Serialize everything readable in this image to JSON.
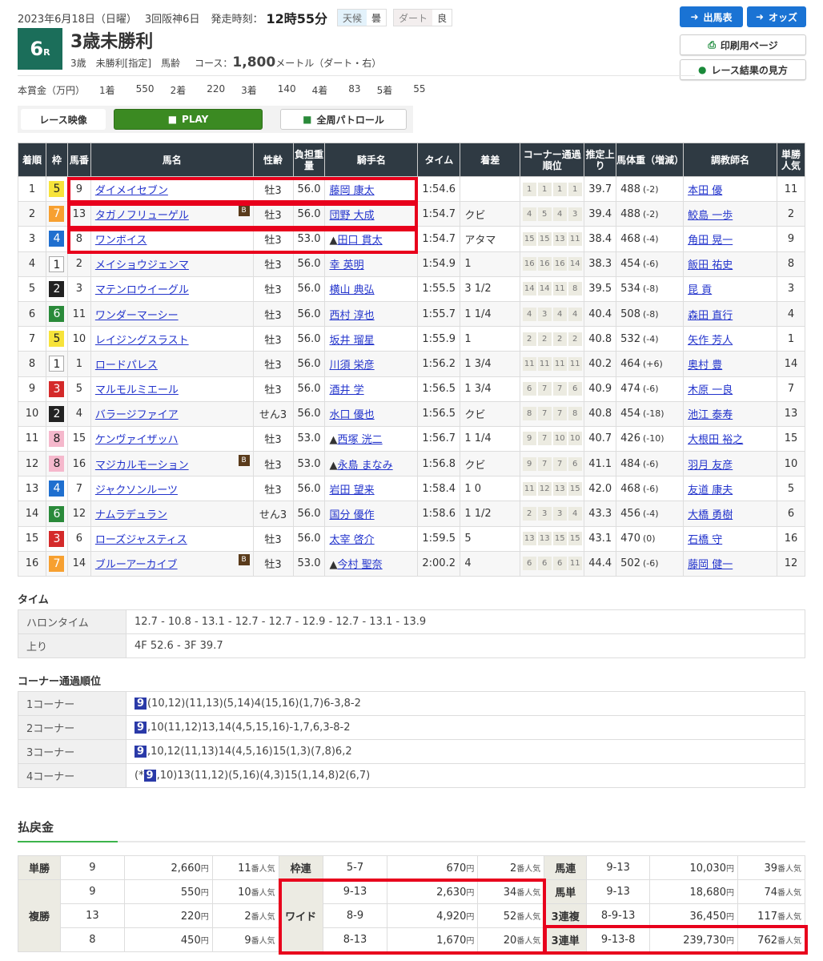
{
  "header": {
    "date": "2023年6月18日（日曜）",
    "meeting": "3回阪神6日",
    "post_label": "発走時刻：",
    "post_time": "12時55分",
    "weather_label": "天候",
    "weather": "曇",
    "track_label": "ダート",
    "track_cond": "良",
    "race_no": "6",
    "race_no_suffix": "R",
    "race_name": "3歳未勝利",
    "conditions": "3歳　未勝利[指定]　馬齢",
    "course_label": "コース：",
    "distance": "1,800",
    "distance_unit": "メートル（ダート・右）"
  },
  "prize": {
    "label": "本賞金（万円）",
    "items": [
      {
        "place": "1着",
        "value": "550"
      },
      {
        "place": "2着",
        "value": "220"
      },
      {
        "place": "3着",
        "value": "140"
      },
      {
        "place": "4着",
        "value": "83"
      },
      {
        "place": "5着",
        "value": "55"
      }
    ]
  },
  "video": {
    "label": "レース映像",
    "play": "PLAY",
    "patrol": "全周パトロール"
  },
  "nav": {
    "entries": "出馬表",
    "odds": "オッズ",
    "print": "印刷用ページ",
    "guide": "レース結果の見方"
  },
  "colors": {
    "waku": {
      "1": "#ffffff",
      "2": "#222222",
      "3": "#d42a2a",
      "4": "#1f6fcf",
      "5": "#f7e33a",
      "6": "#2a8a3a",
      "7": "#f7a030",
      "8": "#f5b8cc"
    },
    "accent": "#1b6e5a",
    "highlight": "#e8001c"
  },
  "results": {
    "headers": [
      "着順",
      "枠",
      "馬番",
      "馬名",
      "性齢",
      "負担重量",
      "騎手名",
      "タイム",
      "着差",
      "コーナー通過順位",
      "推定上り",
      "馬体重（増減）",
      "調教師名",
      "単勝人気"
    ],
    "rows": [
      {
        "pos": "1",
        "waku": "5",
        "num": "9",
        "horse": "ダイメイセブン",
        "blinker": false,
        "sex": "牡3",
        "wt": "56.0",
        "jmark": "",
        "jockey": "藤岡 康太",
        "time": "1:54.6",
        "margin": "",
        "corners": [
          "1",
          "1",
          "1",
          "1"
        ],
        "last": "39.7",
        "bw": "488",
        "bwd": "(-2)",
        "trainer": "本田 優",
        "pop": "11"
      },
      {
        "pos": "2",
        "waku": "7",
        "num": "13",
        "horse": "タガノフリューゲル",
        "blinker": true,
        "sex": "牡3",
        "wt": "56.0",
        "jmark": "",
        "jockey": "団野 大成",
        "time": "1:54.7",
        "margin": "クビ",
        "corners": [
          "4",
          "5",
          "4",
          "3"
        ],
        "last": "39.4",
        "bw": "488",
        "bwd": "(-2)",
        "trainer": "鮫島 一歩",
        "pop": "2"
      },
      {
        "pos": "3",
        "waku": "4",
        "num": "8",
        "horse": "ワンボイス",
        "blinker": false,
        "sex": "牡3",
        "wt": "53.0",
        "jmark": "▲",
        "jockey": "田口 貫太",
        "time": "1:54.7",
        "margin": "アタマ",
        "corners": [
          "15",
          "15",
          "13",
          "11"
        ],
        "last": "38.4",
        "bw": "468",
        "bwd": "(-4)",
        "trainer": "角田 晃一",
        "pop": "9"
      },
      {
        "pos": "4",
        "waku": "1",
        "num": "2",
        "horse": "メイショウジェンマ",
        "blinker": false,
        "sex": "牡3",
        "wt": "56.0",
        "jmark": "",
        "jockey": "幸 英明",
        "time": "1:54.9",
        "margin": "1",
        "corners": [
          "16",
          "16",
          "16",
          "14"
        ],
        "last": "38.3",
        "bw": "454",
        "bwd": "(-6)",
        "trainer": "飯田 祐史",
        "pop": "8"
      },
      {
        "pos": "5",
        "waku": "2",
        "num": "3",
        "horse": "マテンロウイーグル",
        "blinker": false,
        "sex": "牡3",
        "wt": "56.0",
        "jmark": "",
        "jockey": "横山 典弘",
        "time": "1:55.5",
        "margin": "3 1/2",
        "corners": [
          "14",
          "14",
          "11",
          "8"
        ],
        "last": "39.5",
        "bw": "534",
        "bwd": "(-8)",
        "trainer": "昆 貢",
        "pop": "3"
      },
      {
        "pos": "6",
        "waku": "6",
        "num": "11",
        "horse": "ワンダーマーシー",
        "blinker": false,
        "sex": "牡3",
        "wt": "56.0",
        "jmark": "",
        "jockey": "西村 淳也",
        "time": "1:55.7",
        "margin": "1 1/4",
        "corners": [
          "4",
          "3",
          "4",
          "4"
        ],
        "last": "40.4",
        "bw": "508",
        "bwd": "(-8)",
        "trainer": "森田 直行",
        "pop": "4"
      },
      {
        "pos": "7",
        "waku": "5",
        "num": "10",
        "horse": "レイジングスラスト",
        "blinker": false,
        "sex": "牡3",
        "wt": "56.0",
        "jmark": "",
        "jockey": "坂井 瑠星",
        "time": "1:55.9",
        "margin": "1",
        "corners": [
          "2",
          "2",
          "2",
          "2"
        ],
        "last": "40.8",
        "bw": "532",
        "bwd": "(-4)",
        "trainer": "矢作 芳人",
        "pop": "1"
      },
      {
        "pos": "8",
        "waku": "1",
        "num": "1",
        "horse": "ロードパレス",
        "blinker": false,
        "sex": "牡3",
        "wt": "56.0",
        "jmark": "",
        "jockey": "川須 栄彦",
        "time": "1:56.2",
        "margin": "1 3/4",
        "corners": [
          "11",
          "11",
          "11",
          "11"
        ],
        "last": "40.2",
        "bw": "464",
        "bwd": "(+6)",
        "trainer": "奥村 豊",
        "pop": "14"
      },
      {
        "pos": "9",
        "waku": "3",
        "num": "5",
        "horse": "マルモルミエール",
        "blinker": false,
        "sex": "牡3",
        "wt": "56.0",
        "jmark": "",
        "jockey": "酒井 学",
        "time": "1:56.5",
        "margin": "1 3/4",
        "corners": [
          "6",
          "7",
          "7",
          "6"
        ],
        "last": "40.9",
        "bw": "474",
        "bwd": "(-6)",
        "trainer": "木原 一良",
        "pop": "7"
      },
      {
        "pos": "10",
        "waku": "2",
        "num": "4",
        "horse": "バラージファイア",
        "blinker": false,
        "sex": "せん3",
        "wt": "56.0",
        "jmark": "",
        "jockey": "水口 優也",
        "time": "1:56.5",
        "margin": "クビ",
        "corners": [
          "8",
          "7",
          "7",
          "8"
        ],
        "last": "40.8",
        "bw": "454",
        "bwd": "(-18)",
        "trainer": "池江 泰寿",
        "pop": "13"
      },
      {
        "pos": "11",
        "waku": "8",
        "num": "15",
        "horse": "ケンヴァイザッハ",
        "blinker": false,
        "sex": "牡3",
        "wt": "53.0",
        "jmark": "▲",
        "jockey": "西塚 洸二",
        "time": "1:56.7",
        "margin": "1 1/4",
        "corners": [
          "9",
          "7",
          "10",
          "10"
        ],
        "last": "40.7",
        "bw": "426",
        "bwd": "(-10)",
        "trainer": "大根田 裕之",
        "pop": "15"
      },
      {
        "pos": "12",
        "waku": "8",
        "num": "16",
        "horse": "マジカルモーション",
        "blinker": true,
        "sex": "牡3",
        "wt": "53.0",
        "jmark": "▲",
        "jockey": "永島 まなみ",
        "time": "1:56.8",
        "margin": "クビ",
        "corners": [
          "9",
          "7",
          "7",
          "6"
        ],
        "last": "41.1",
        "bw": "484",
        "bwd": "(-6)",
        "trainer": "羽月 友彦",
        "pop": "10"
      },
      {
        "pos": "13",
        "waku": "4",
        "num": "7",
        "horse": "ジャクソンルーツ",
        "blinker": false,
        "sex": "牡3",
        "wt": "56.0",
        "jmark": "",
        "jockey": "岩田 望来",
        "time": "1:58.4",
        "margin": "1 0",
        "corners": [
          "11",
          "12",
          "13",
          "15"
        ],
        "last": "42.0",
        "bw": "468",
        "bwd": "(-6)",
        "trainer": "友道 康夫",
        "pop": "5"
      },
      {
        "pos": "14",
        "waku": "6",
        "num": "12",
        "horse": "ナムラデュラン",
        "blinker": false,
        "sex": "せん3",
        "wt": "56.0",
        "jmark": "",
        "jockey": "国分 優作",
        "time": "1:58.6",
        "margin": "1 1/2",
        "corners": [
          "2",
          "3",
          "3",
          "4"
        ],
        "last": "43.3",
        "bw": "456",
        "bwd": "(-4)",
        "trainer": "大橋 勇樹",
        "pop": "6"
      },
      {
        "pos": "15",
        "waku": "3",
        "num": "6",
        "horse": "ローズジャスティス",
        "blinker": false,
        "sex": "牡3",
        "wt": "56.0",
        "jmark": "",
        "jockey": "太宰 啓介",
        "time": "1:59.5",
        "margin": "5",
        "corners": [
          "13",
          "13",
          "15",
          "15"
        ],
        "last": "43.1",
        "bw": "470",
        "bwd": "(0)",
        "trainer": "石橋 守",
        "pop": "16"
      },
      {
        "pos": "16",
        "waku": "7",
        "num": "14",
        "horse": "ブルーアーカイブ",
        "blinker": true,
        "sex": "牡3",
        "wt": "53.0",
        "jmark": "▲",
        "jockey": "今村 聖奈",
        "time": "2:00.2",
        "margin": "4",
        "corners": [
          "6",
          "6",
          "6",
          "11"
        ],
        "last": "44.4",
        "bw": "502",
        "bwd": "(-6)",
        "trainer": "藤岡 健一",
        "pop": "12"
      }
    ],
    "blinker_label": "B"
  },
  "time_section": {
    "title": "タイム",
    "rows": [
      {
        "k": "ハロンタイム",
        "v": "12.7 - 10.8 - 13.1 - 12.7 - 12.7 - 12.9 - 12.7 - 13.1 - 13.9"
      },
      {
        "k": "上り",
        "v": "4F 52.6 - 3F 39.7"
      }
    ]
  },
  "corner_section": {
    "title": "コーナー通過順位",
    "rows": [
      {
        "k": "1コーナー",
        "pre": "",
        "lead": "9",
        "v": "(10,12)(11,13)(5,14)4(15,16)(1,7)6-3,8-2"
      },
      {
        "k": "2コーナー",
        "pre": "",
        "lead": "9",
        "v": ",10(11,12)13,14(4,5,15,16)-1,7,6,3-8-2"
      },
      {
        "k": "3コーナー",
        "pre": "",
        "lead": "9",
        "v": ",10,12(11,13)14(4,5,16)15(1,3)(7,8)6,2"
      },
      {
        "k": "4コーナー",
        "pre": "(*",
        "lead": "9",
        "v": ",10)13(11,12)(5,16)(4,3)15(1,14,8)2(6,7)"
      }
    ]
  },
  "payout": {
    "title": "払戻金",
    "yen": "円",
    "pop_suffix": "番人気",
    "tansho": {
      "label": "単勝",
      "rows": [
        {
          "c": "9",
          "y": "2,660",
          "p": "11"
        }
      ]
    },
    "fukusho": {
      "label": "複勝",
      "rows": [
        {
          "c": "9",
          "y": "550",
          "p": "10"
        },
        {
          "c": "13",
          "y": "220",
          "p": "2"
        },
        {
          "c": "8",
          "y": "450",
          "p": "9"
        }
      ]
    },
    "wakuren": {
      "label": "枠連",
      "rows": [
        {
          "c": "5-7",
          "y": "670",
          "p": "2"
        }
      ]
    },
    "wide": {
      "label": "ワイド",
      "rows": [
        {
          "c": "9-13",
          "y": "2,630",
          "p": "34"
        },
        {
          "c": "8-9",
          "y": "4,920",
          "p": "52"
        },
        {
          "c": "8-13",
          "y": "1,670",
          "p": "20"
        }
      ]
    },
    "umaren": {
      "label": "馬連",
      "rows": [
        {
          "c": "9-13",
          "y": "10,030",
          "p": "39"
        }
      ]
    },
    "umatan": {
      "label": "馬単",
      "rows": [
        {
          "c": "9-13",
          "y": "18,680",
          "p": "74"
        }
      ]
    },
    "sanrenpuku": {
      "label": "3連複",
      "rows": [
        {
          "c": "8-9-13",
          "y": "36,450",
          "p": "117"
        }
      ]
    },
    "sanrentan": {
      "label": "3連単",
      "rows": [
        {
          "c": "9-13-8",
          "y": "239,730",
          "p": "762"
        }
      ]
    }
  }
}
